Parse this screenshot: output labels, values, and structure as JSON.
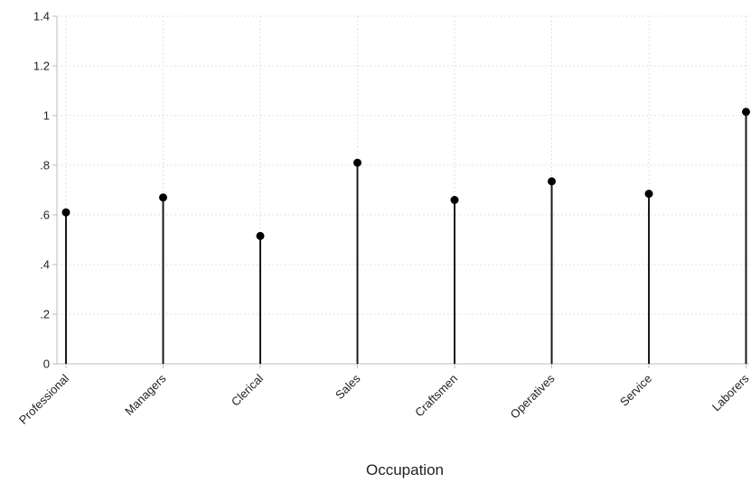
{
  "chart_data": {
    "type": "lollipop",
    "categories": [
      "Professional",
      "Managers",
      "Clerical",
      "Sales",
      "Craftsmen",
      "Operatives",
      "Service",
      "Laborers"
    ],
    "values": [
      0.61,
      0.67,
      0.515,
      0.81,
      0.66,
      0.735,
      0.685,
      1.015
    ],
    "xlabel": "Occupation",
    "ylabel": "",
    "ylim": [
      0,
      1.4
    ],
    "yticks": [
      0,
      0.2,
      0.4,
      0.6,
      0.8,
      1.0,
      1.2,
      1.4
    ],
    "ytick_labels": [
      "0",
      ".2",
      ".4",
      ".6",
      ".8",
      "1",
      "1.2",
      "1.4"
    ],
    "grid": true,
    "colors": {
      "stem": "#1a1a1a",
      "marker": "#000000",
      "grid": "#d9d9d9",
      "axis": "#bdbdbd"
    }
  }
}
